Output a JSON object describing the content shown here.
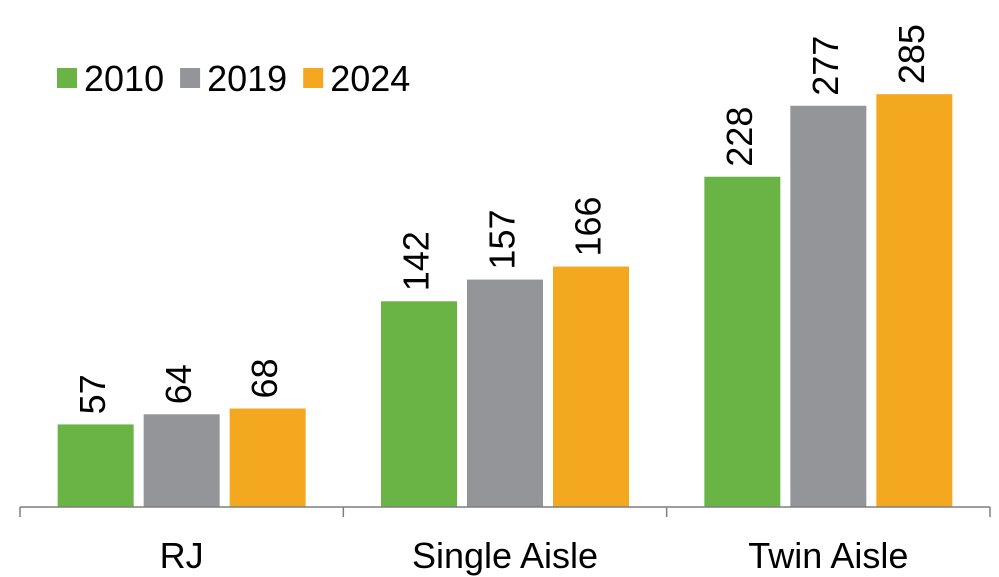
{
  "chart_data": {
    "type": "bar",
    "categories": [
      "RJ",
      "Single Aisle",
      "Twin Aisle"
    ],
    "series": [
      {
        "name": "2010",
        "color": "#6ab446",
        "values": [
          57,
          142,
          228
        ]
      },
      {
        "name": "2019",
        "color": "#939598",
        "values": [
          64,
          157,
          277
        ]
      },
      {
        "name": "2024",
        "color": "#f3a81f",
        "values": [
          68,
          166,
          285
        ]
      }
    ],
    "ylim": [
      0,
      350
    ],
    "legend": "top-left"
  }
}
